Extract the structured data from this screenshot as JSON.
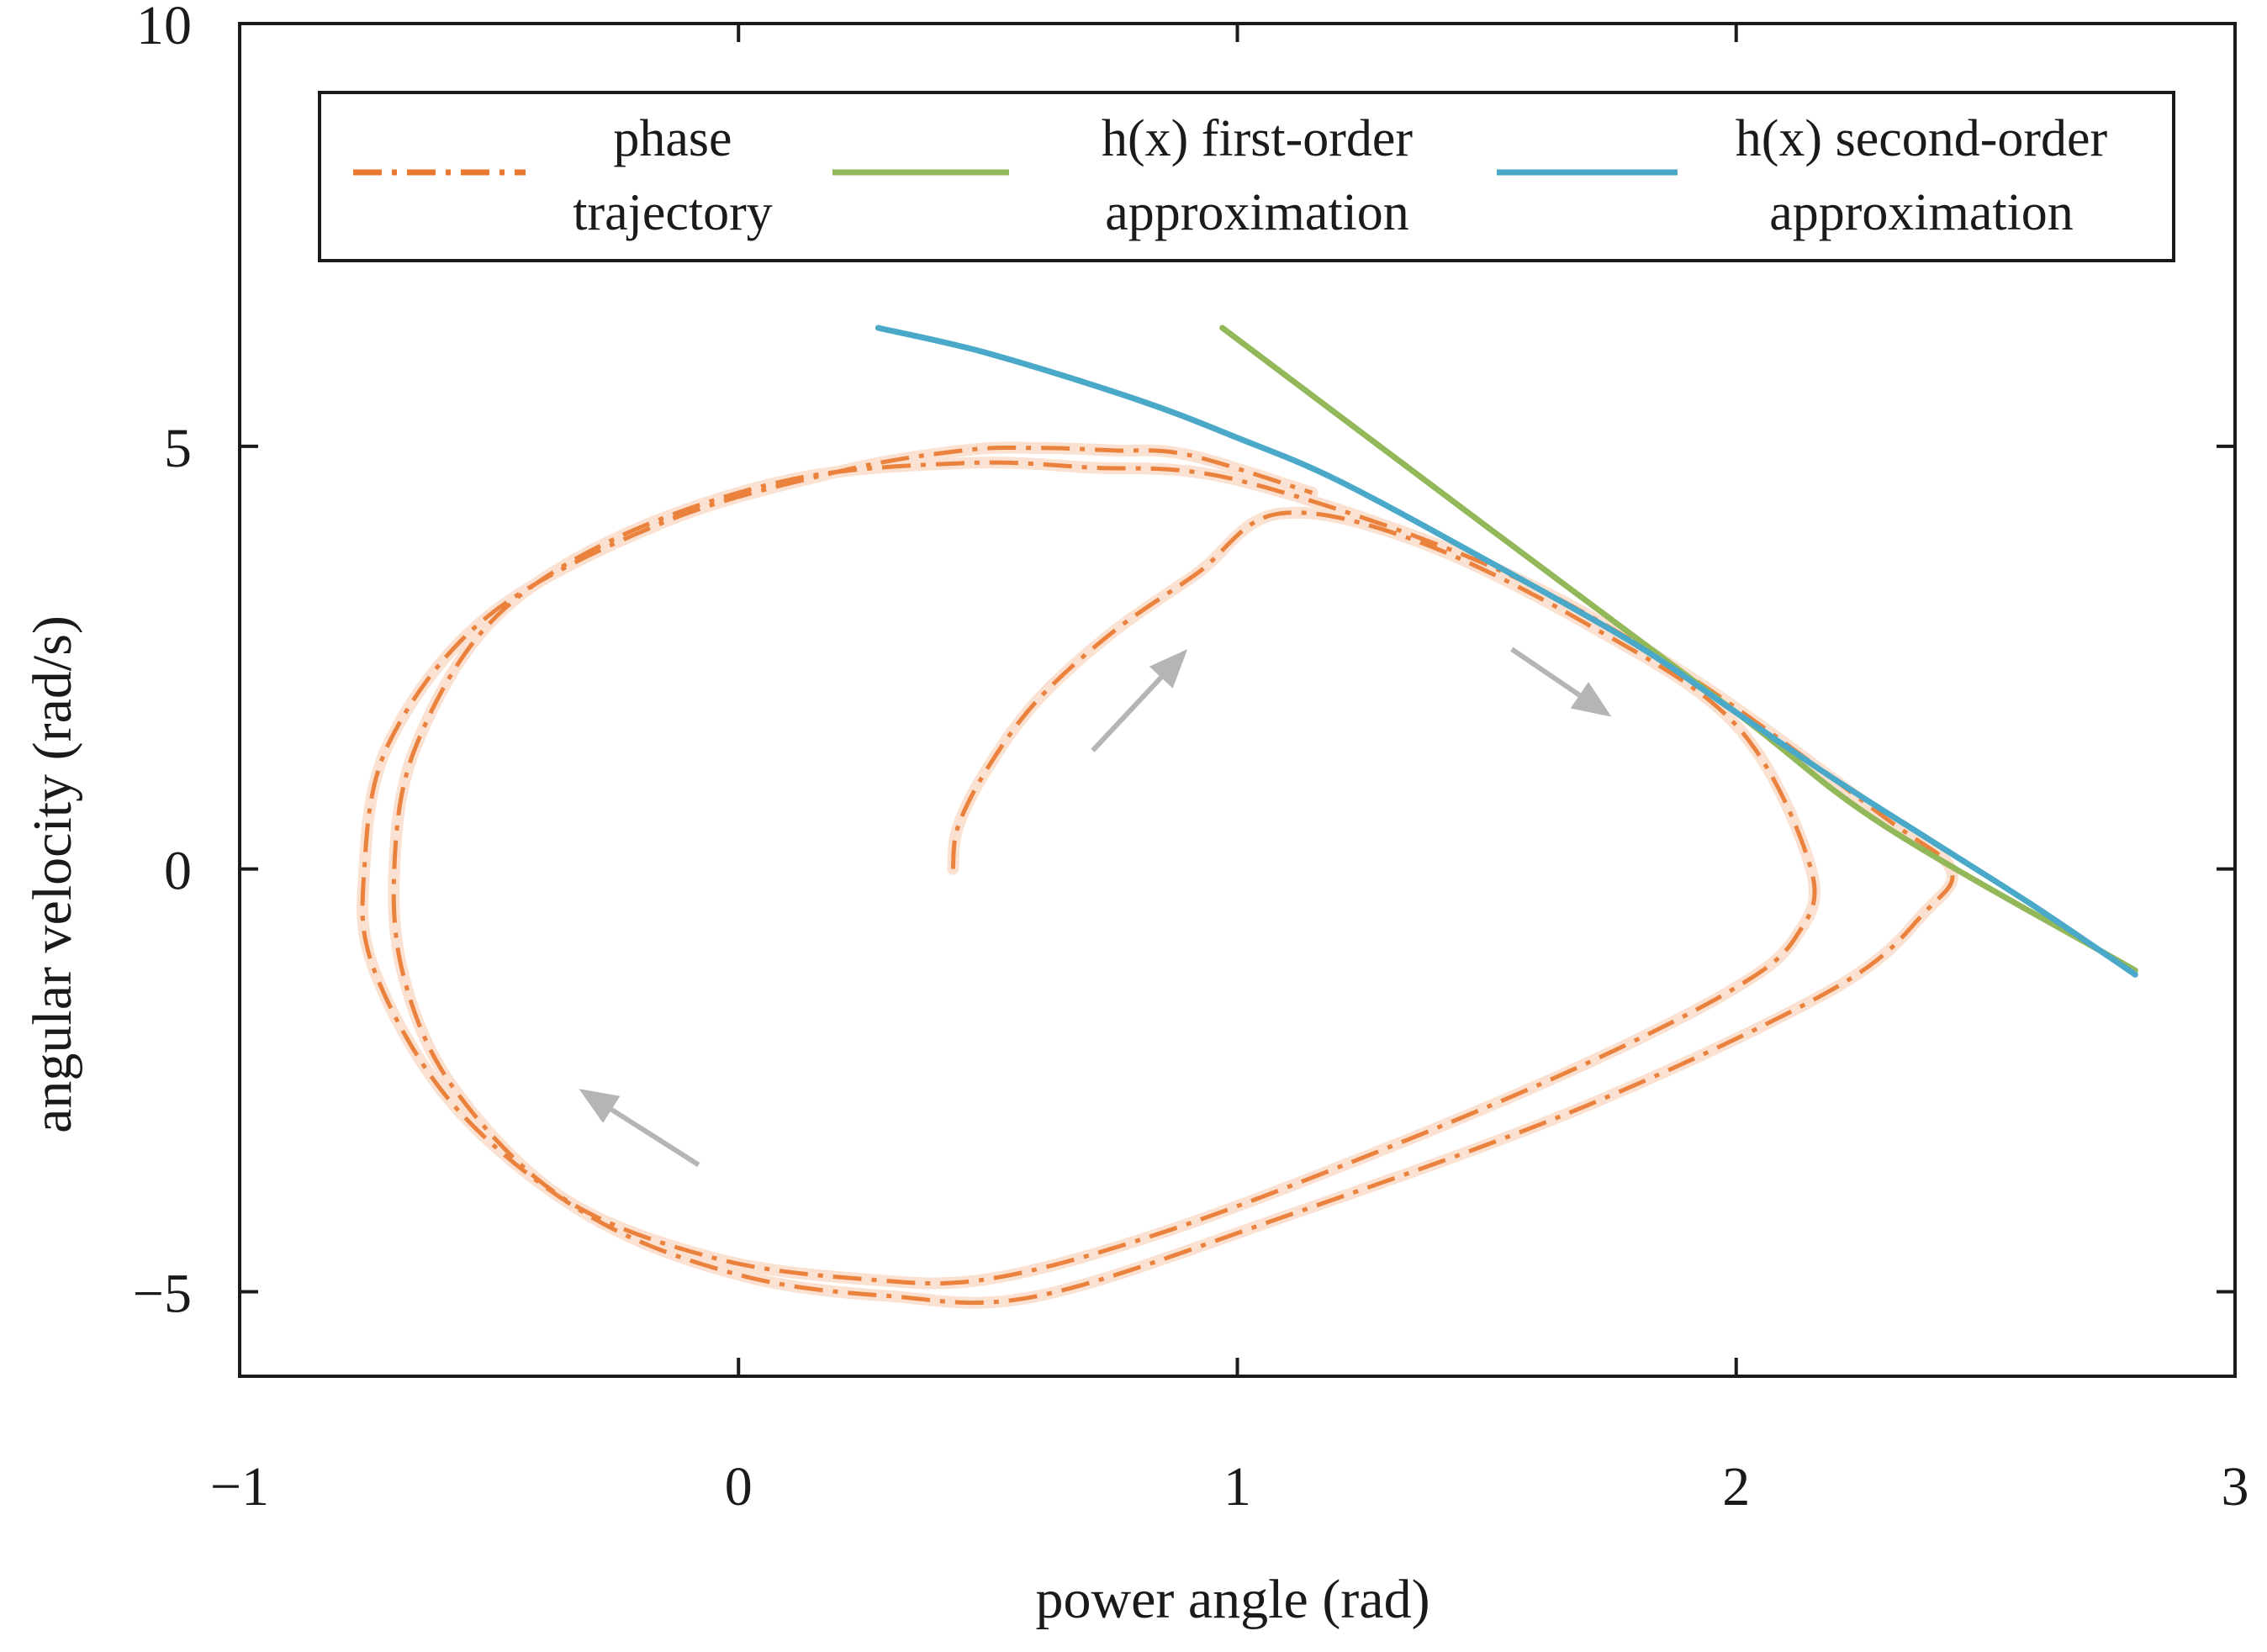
{
  "chart_data": {
    "type": "line",
    "title": "",
    "xlabel": "power angle (rad)",
    "ylabel": "angular velocity (rad/s)",
    "xlim": [
      -1,
      3
    ],
    "ylim": [
      -6,
      10
    ],
    "xticks": [
      -1,
      0,
      1,
      2,
      3
    ],
    "xtick_labels": [
      "−1",
      "0",
      "1",
      "2",
      "3"
    ],
    "yticks": [
      -5,
      0,
      5,
      10
    ],
    "ytick_labels": [
      "−5",
      "0",
      "5",
      "10"
    ],
    "grid": false,
    "legend_position": "top",
    "series": [
      {
        "name": "phase trajectory",
        "legend_lines": [
          "phase",
          "trajectory"
        ],
        "color": "#e8782d",
        "style": "dash-dot",
        "x": [
          0.43,
          0.44,
          0.5,
          0.6,
          0.75,
          0.92,
          1.08,
          1.35,
          1.7,
          2.0,
          2.15,
          2.12,
          2.0,
          1.7,
          1.3,
          0.85,
          0.5,
          0.25,
          -0.05,
          -0.35,
          -0.57,
          -0.67,
          -0.69,
          -0.65,
          -0.5,
          -0.25,
          0.1,
          0.45,
          0.7,
          1.0,
          1.5,
          1.9,
          2.3,
          2.43,
          2.38,
          2.2,
          1.7,
          1.1,
          0.6,
          0.3,
          0.0,
          -0.3,
          -0.57,
          -0.73,
          -0.75,
          -0.7,
          -0.5,
          -0.15,
          0.2,
          0.45,
          0.6,
          0.75,
          0.9,
          1.15
        ],
        "y": [
          0.0,
          0.5,
          1.2,
          2.0,
          2.8,
          3.5,
          4.2,
          3.9,
          2.9,
          1.7,
          0.0,
          -0.8,
          -1.4,
          -2.3,
          -3.3,
          -4.3,
          -4.85,
          -4.85,
          -4.6,
          -3.9,
          -2.6,
          -1.3,
          0.0,
          1.4,
          2.9,
          3.9,
          4.6,
          4.8,
          4.75,
          4.6,
          3.6,
          2.3,
          0.6,
          0.0,
          -0.5,
          -1.4,
          -2.8,
          -4.1,
          -5.05,
          -5.05,
          -4.8,
          -4.1,
          -2.8,
          -1.2,
          0.0,
          1.5,
          3.0,
          4.1,
          4.7,
          4.95,
          4.98,
          4.95,
          4.9,
          4.45
        ]
      },
      {
        "name": "h(x) first-order approximation",
        "legend_lines": [
          "h(x) first-order",
          "approximation"
        ],
        "color": "#93b85a",
        "style": "solid",
        "x": [
          0.97,
          1.5,
          2.0,
          2.3,
          2.8
        ],
        "y": [
          6.4,
          4.05,
          1.85,
          0.5,
          -1.2
        ]
      },
      {
        "name": "h(x) second-order approximation",
        "legend_lines": [
          "h(x) second-order",
          "approximation"
        ],
        "color": "#4aa8c8",
        "style": "solid",
        "x": [
          0.28,
          0.5,
          0.8,
          1.0,
          1.2,
          1.5,
          1.8,
          2.0,
          2.2,
          2.4,
          2.6,
          2.8
        ],
        "y": [
          6.4,
          6.1,
          5.55,
          5.1,
          4.6,
          3.65,
          2.65,
          1.85,
          1.05,
          0.3,
          -0.45,
          -1.25
        ]
      }
    ],
    "arrows": [
      {
        "from": [
          0.71,
          1.4
        ],
        "to": [
          0.9,
          2.6
        ],
        "color": "#b5b5b5"
      },
      {
        "from": [
          1.55,
          2.6
        ],
        "to": [
          1.75,
          1.8
        ],
        "color": "#b5b5b5"
      },
      {
        "from": [
          -0.08,
          -3.5
        ],
        "to": [
          -0.32,
          -2.6
        ],
        "color": "#b5b5b5"
      }
    ]
  }
}
